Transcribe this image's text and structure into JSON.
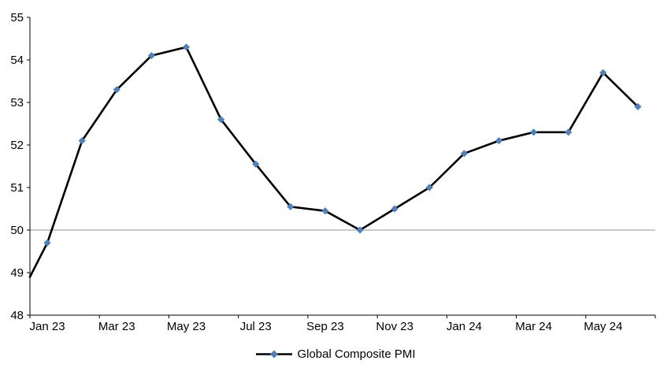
{
  "chart_data": {
    "type": "line",
    "categories": [
      "Jan 23",
      "Feb 23",
      "Mar 23",
      "Apr 23",
      "May 23",
      "Jun 23",
      "Jul 23",
      "Aug 23",
      "Sep 23",
      "Oct 23",
      "Nov 23",
      "Dec 23",
      "Jan 24",
      "Feb 24",
      "Mar 24",
      "Apr 24",
      "May 24",
      "Jun 24"
    ],
    "values": [
      49.7,
      52.1,
      53.3,
      54.1,
      54.3,
      52.6,
      51.55,
      50.55,
      50.45,
      50.0,
      50.5,
      51.0,
      51.8,
      52.1,
      52.3,
      52.3,
      53.7,
      52.9
    ],
    "lead_in": {
      "value": 48.9
    },
    "x_tick_labels": [
      "Jan 23",
      "Mar 23",
      "May 23",
      "Jul 23",
      "Sep 23",
      "Nov 23",
      "Jan 24",
      "Mar 24",
      "May 24"
    ],
    "x_label_every": 2,
    "ylim": [
      48,
      55
    ],
    "y_tick_step": 1,
    "y_tick_labels": [
      "48",
      "49",
      "50",
      "51",
      "52",
      "53",
      "54",
      "55"
    ],
    "reference_line_y": 50,
    "title": "",
    "xlabel": "",
    "ylabel": "",
    "legend": {
      "label": "Global Composite PMI",
      "position": "bottom"
    },
    "grid": "single horizontal reference line at 50",
    "colors": {
      "line": "#000000",
      "marker": "#4F81BD",
      "reference_line": "#969696",
      "axis": "#000000",
      "text": "#000000",
      "background": "#FFFFFF"
    }
  }
}
